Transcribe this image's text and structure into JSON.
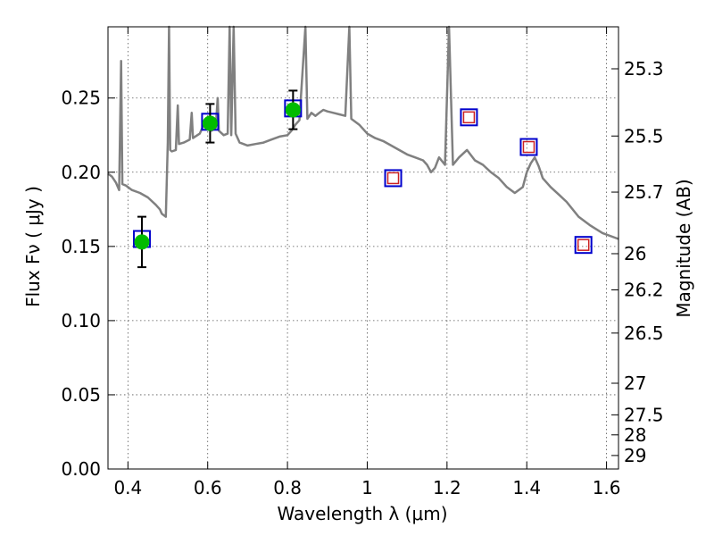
{
  "chart_data": {
    "type": "scatter",
    "xlabel": "Wavelength  λ (μm)",
    "ylabel": "Flux  Fν  ( μJy )",
    "y2label": "Magnitude (AB)",
    "xlim": [
      0.35,
      1.63
    ],
    "ylim": [
      0.0,
      0.298
    ],
    "grid": true,
    "xticks": [
      0.4,
      0.6,
      0.8,
      1.0,
      1.2,
      1.4,
      1.6
    ],
    "xtick_labels": [
      "0.4",
      "0.6",
      "0.8",
      "1",
      "1.2",
      "1.4",
      "1.6"
    ],
    "yticks": [
      0.0,
      0.05,
      0.1,
      0.15,
      0.2,
      0.25
    ],
    "ytick_labels": [
      "0.00",
      "0.05",
      "0.10",
      "0.15",
      "0.20",
      "0.25"
    ],
    "y2ticks": [
      {
        "flux": 0.2697,
        "label": "25.3"
      },
      {
        "flux": 0.2244,
        "label": "25.5"
      },
      {
        "flux": 0.1866,
        "label": "25.7"
      },
      {
        "flux": 0.1451,
        "label": "26"
      },
      {
        "flux": 0.1207,
        "label": "26.2"
      },
      {
        "flux": 0.0916,
        "label": "26.5"
      },
      {
        "flux": 0.0578,
        "label": "27"
      },
      {
        "flux": 0.0365,
        "label": "27.5"
      },
      {
        "flux": 0.023,
        "label": "28"
      },
      {
        "flux": 0.0091,
        "label": "29"
      }
    ],
    "colors": {
      "model": "#808080",
      "observed": "#00bb00",
      "model_box": "#0000cc",
      "upper_box": "#cc2222",
      "errorbar": "#000000",
      "grid": "#555555"
    },
    "series": [
      {
        "kind": "observed",
        "points": [
          {
            "x": 0.435,
            "y": 0.153,
            "err": 0.017
          },
          {
            "x": 0.606,
            "y": 0.233,
            "err": 0.013
          },
          {
            "x": 0.814,
            "y": 0.242,
            "err": 0.013
          }
        ]
      },
      {
        "kind": "model_box",
        "points": [
          {
            "x": 0.435,
            "y": 0.155
          },
          {
            "x": 0.606,
            "y": 0.234
          },
          {
            "x": 0.814,
            "y": 0.243
          },
          {
            "x": 1.065,
            "y": 0.196
          },
          {
            "x": 1.255,
            "y": 0.237
          },
          {
            "x": 1.405,
            "y": 0.217
          },
          {
            "x": 1.542,
            "y": 0.151
          }
        ]
      },
      {
        "kind": "upper_box",
        "points": [
          {
            "x": 1.065,
            "y": 0.196
          },
          {
            "x": 1.255,
            "y": 0.237
          },
          {
            "x": 1.405,
            "y": 0.217
          },
          {
            "x": 1.542,
            "y": 0.151
          }
        ]
      },
      {
        "kind": "model",
        "points": [
          [
            0.35,
            0.199
          ],
          [
            0.36,
            0.197
          ],
          [
            0.37,
            0.193
          ],
          [
            0.378,
            0.188
          ],
          [
            0.383,
            0.275
          ],
          [
            0.386,
            0.192
          ],
          [
            0.395,
            0.191
          ],
          [
            0.41,
            0.188
          ],
          [
            0.43,
            0.186
          ],
          [
            0.45,
            0.183
          ],
          [
            0.47,
            0.178
          ],
          [
            0.48,
            0.175
          ],
          [
            0.485,
            0.172
          ],
          [
            0.49,
            0.171
          ],
          [
            0.495,
            0.17
          ],
          [
            0.5,
            0.22
          ],
          [
            0.503,
            0.298
          ],
          [
            0.506,
            0.215
          ],
          [
            0.51,
            0.214
          ],
          [
            0.52,
            0.215
          ],
          [
            0.525,
            0.245
          ],
          [
            0.528,
            0.219
          ],
          [
            0.54,
            0.22
          ],
          [
            0.555,
            0.222
          ],
          [
            0.56,
            0.24
          ],
          [
            0.563,
            0.223
          ],
          [
            0.58,
            0.226
          ],
          [
            0.59,
            0.232
          ],
          [
            0.6,
            0.229
          ],
          [
            0.61,
            0.228
          ],
          [
            0.62,
            0.23
          ],
          [
            0.625,
            0.25
          ],
          [
            0.628,
            0.228
          ],
          [
            0.64,
            0.225
          ],
          [
            0.65,
            0.226
          ],
          [
            0.655,
            0.298
          ],
          [
            0.659,
            0.225
          ],
          [
            0.665,
            0.298
          ],
          [
            0.67,
            0.226
          ],
          [
            0.68,
            0.22
          ],
          [
            0.7,
            0.218
          ],
          [
            0.72,
            0.219
          ],
          [
            0.74,
            0.22
          ],
          [
            0.76,
            0.222
          ],
          [
            0.78,
            0.224
          ],
          [
            0.8,
            0.225
          ],
          [
            0.81,
            0.228
          ],
          [
            0.82,
            0.232
          ],
          [
            0.83,
            0.235
          ],
          [
            0.845,
            0.298
          ],
          [
            0.85,
            0.236
          ],
          [
            0.86,
            0.24
          ],
          [
            0.87,
            0.238
          ],
          [
            0.88,
            0.24
          ],
          [
            0.89,
            0.242
          ],
          [
            0.9,
            0.241
          ],
          [
            0.915,
            0.24
          ],
          [
            0.93,
            0.239
          ],
          [
            0.945,
            0.238
          ],
          [
            0.955,
            0.298
          ],
          [
            0.96,
            0.236
          ],
          [
            0.98,
            0.232
          ],
          [
            1.0,
            0.226
          ],
          [
            1.02,
            0.223
          ],
          [
            1.04,
            0.221
          ],
          [
            1.06,
            0.218
          ],
          [
            1.08,
            0.215
          ],
          [
            1.1,
            0.212
          ],
          [
            1.12,
            0.21
          ],
          [
            1.14,
            0.208
          ],
          [
            1.15,
            0.205
          ],
          [
            1.16,
            0.2
          ],
          [
            1.17,
            0.203
          ],
          [
            1.18,
            0.21
          ],
          [
            1.195,
            0.205
          ],
          [
            1.205,
            0.298
          ],
          [
            1.215,
            0.205
          ],
          [
            1.23,
            0.21
          ],
          [
            1.25,
            0.215
          ],
          [
            1.27,
            0.208
          ],
          [
            1.29,
            0.205
          ],
          [
            1.31,
            0.2
          ],
          [
            1.33,
            0.196
          ],
          [
            1.35,
            0.19
          ],
          [
            1.37,
            0.186
          ],
          [
            1.39,
            0.19
          ],
          [
            1.4,
            0.2
          ],
          [
            1.41,
            0.206
          ],
          [
            1.42,
            0.21
          ],
          [
            1.43,
            0.204
          ],
          [
            1.44,
            0.196
          ],
          [
            1.46,
            0.19
          ],
          [
            1.48,
            0.185
          ],
          [
            1.5,
            0.18
          ],
          [
            1.53,
            0.17
          ],
          [
            1.56,
            0.164
          ],
          [
            1.59,
            0.159
          ],
          [
            1.63,
            0.155
          ]
        ]
      }
    ]
  }
}
